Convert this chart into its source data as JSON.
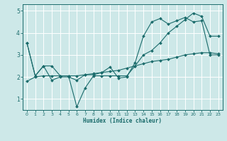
{
  "title": "",
  "xlabel": "Humidex (Indice chaleur)",
  "ylabel": "",
  "bg_color": "#cde8e8",
  "line_color": "#1a6b6b",
  "grid_color": "#b0d4d4",
  "xlim": [
    -0.5,
    23.5
  ],
  "ylim": [
    0.5,
    5.3
  ],
  "yticks": [
    1,
    2,
    3,
    4,
    5
  ],
  "xticks": [
    0,
    1,
    2,
    3,
    4,
    5,
    6,
    7,
    8,
    9,
    10,
    11,
    12,
    13,
    14,
    15,
    16,
    17,
    18,
    19,
    20,
    21,
    22,
    23
  ],
  "line1_x": [
    0,
    1,
    2,
    3,
    4,
    5,
    6,
    7,
    8,
    9,
    10,
    11,
    12,
    13,
    14,
    15,
    16,
    17,
    18,
    19,
    20,
    21,
    22,
    23
  ],
  "line1_y": [
    3.55,
    2.05,
    2.5,
    2.5,
    2.05,
    2.05,
    0.65,
    1.5,
    2.05,
    2.05,
    2.05,
    2.05,
    2.05,
    2.5,
    3.0,
    3.2,
    3.55,
    4.0,
    4.3,
    4.6,
    4.9,
    4.75,
    3.85,
    3.85
  ],
  "line2_x": [
    0,
    1,
    2,
    3,
    4,
    5,
    6,
    7,
    8,
    9,
    10,
    11,
    12,
    13,
    14,
    15,
    16,
    17,
    18,
    19,
    20,
    21,
    22,
    23
  ],
  "line2_y": [
    3.55,
    2.05,
    2.5,
    1.85,
    2.0,
    2.0,
    1.85,
    2.1,
    2.1,
    2.2,
    2.45,
    1.95,
    2.0,
    2.65,
    3.85,
    4.5,
    4.65,
    4.4,
    4.55,
    4.7,
    4.5,
    4.55,
    3.0,
    3.0
  ],
  "line3_x": [
    0,
    1,
    2,
    3,
    4,
    5,
    6,
    7,
    8,
    9,
    10,
    11,
    12,
    13,
    14,
    15,
    16,
    17,
    18,
    19,
    20,
    21,
    22,
    23
  ],
  "line3_y": [
    1.8,
    2.0,
    2.05,
    2.05,
    2.05,
    2.05,
    2.05,
    2.1,
    2.15,
    2.2,
    2.25,
    2.3,
    2.4,
    2.5,
    2.6,
    2.7,
    2.75,
    2.8,
    2.9,
    3.0,
    3.05,
    3.1,
    3.1,
    3.05
  ]
}
